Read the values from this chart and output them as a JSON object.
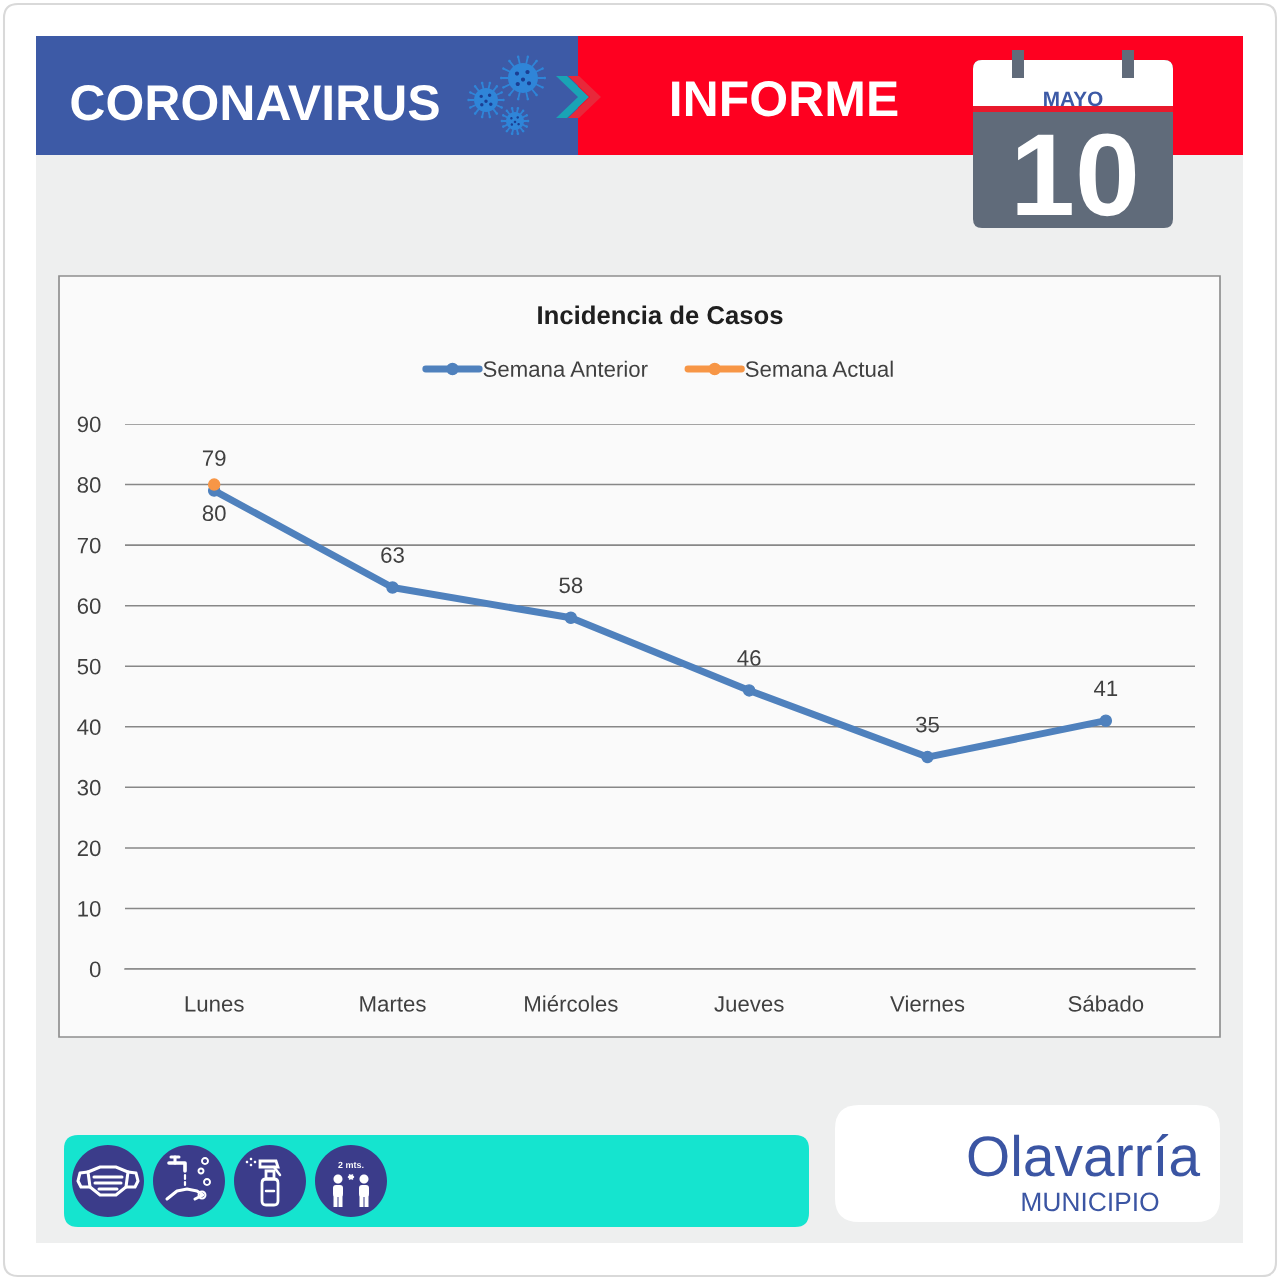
{
  "chart_data": {
    "type": "line",
    "title": "Incidencia de Casos",
    "categories": [
      "Lunes",
      "Martes",
      "Miércoles",
      "Jueves",
      "Viernes",
      "Sábado"
    ],
    "series": [
      {
        "name": "Semana Anterior",
        "color": "#4f81bd",
        "values": [
          79,
          63,
          58,
          46,
          35,
          41
        ]
      },
      {
        "name": "Semana Actual",
        "color": "#f79646",
        "values": [
          80,
          null,
          null,
          null,
          null,
          null
        ]
      }
    ],
    "ylim": [
      0,
      90
    ],
    "yticks": [
      0,
      10,
      20,
      30,
      40,
      50,
      60,
      70,
      80,
      90
    ],
    "grid": "y",
    "legend": "top",
    "marker": "circle",
    "data_labels": true,
    "annotations": [
      "CORONAVIRUS",
      "INFORME",
      "MAYO",
      "10",
      "2 mts.",
      "Olavarría",
      "MUNICIPIO"
    ]
  }
}
